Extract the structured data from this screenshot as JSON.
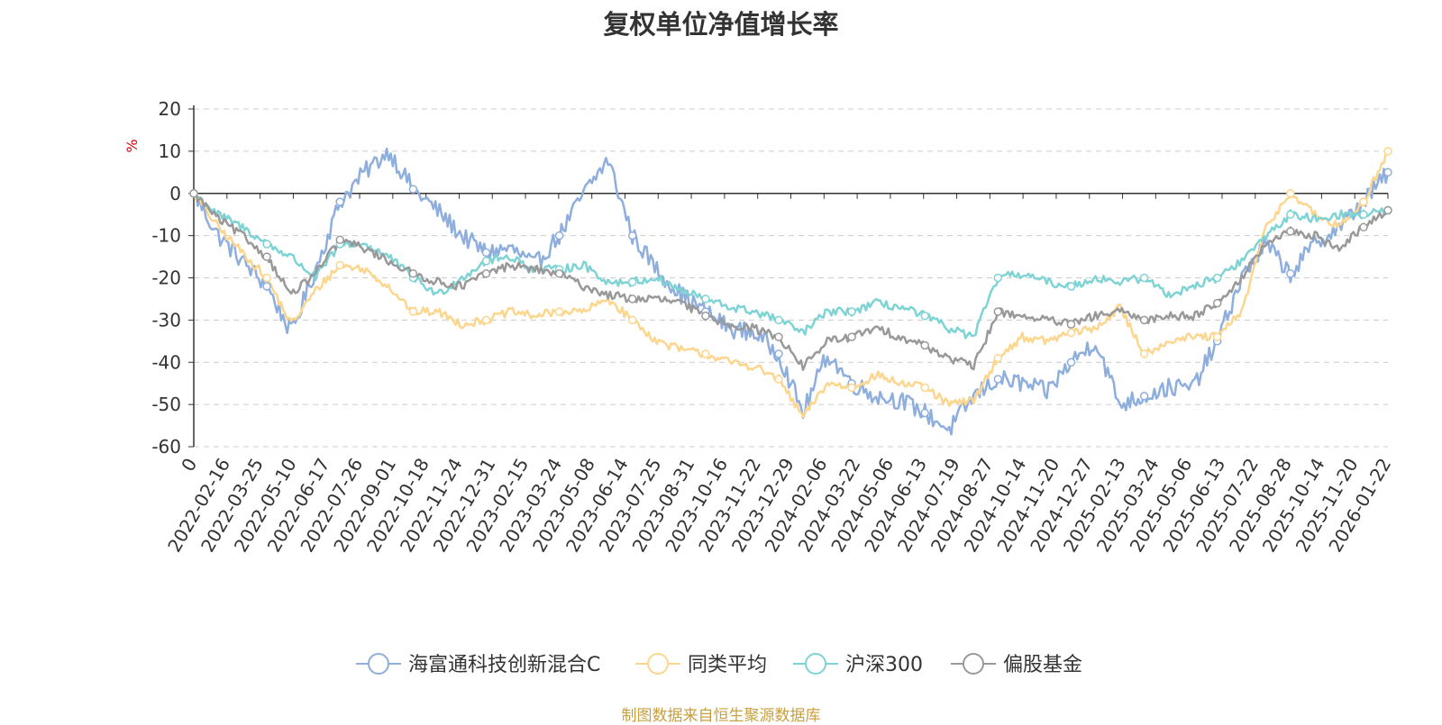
{
  "chart_data": {
    "type": "line",
    "title": "复权单位净值增长率",
    "ylabel": "%",
    "ylim": [
      -60,
      20
    ],
    "yticks": [
      "20",
      "10",
      "0",
      "-10",
      "-20",
      "-30",
      "-40",
      "-50",
      "-60"
    ],
    "x_tick_labels": [
      "0",
      "2022-02-16",
      "2022-03-25",
      "2022-05-10",
      "2022-06-17",
      "2022-07-26",
      "2022-09-01",
      "2022-10-18",
      "2022-11-24",
      "2022-12-31",
      "2023-02-15",
      "2023-03-24",
      "2023-05-08",
      "2023-06-14",
      "2023-07-25",
      "2023-08-31",
      "2023-10-16",
      "2023-11-22",
      "2023-12-29",
      "2024-02-06",
      "2024-03-22",
      "2024-05-06",
      "2024-06-13",
      "2024-07-19",
      "2024-08-27",
      "2024-10-14",
      "2024-11-20",
      "2024-12-27",
      "2025-02-13",
      "2025-03-24",
      "2025-05-06",
      "2025-06-13",
      "2025-07-22",
      "2025-08-28",
      "2025-10-14",
      "2025-11-20",
      "2026-01-22"
    ],
    "x": [
      "0",
      "2022-02",
      "2022-03",
      "2022-04",
      "2022-05",
      "2022-06",
      "2022-07",
      "2022-08",
      "2022-09",
      "2022-10",
      "2022-11",
      "2022-12",
      "2023-01",
      "2023-02",
      "2023-03",
      "2023-04",
      "2023-05",
      "2023-06",
      "2023-07",
      "2023-08",
      "2023-09",
      "2023-10",
      "2023-11",
      "2023-12",
      "2024-01",
      "2024-02",
      "2024-03",
      "2024-04",
      "2024-05",
      "2024-06",
      "2024-07",
      "2024-08",
      "2024-09",
      "2024-10",
      "2024-11",
      "2024-12",
      "2025-01",
      "2025-02",
      "2025-03",
      "2025-04",
      "2025-05",
      "2025-06",
      "2025-07",
      "2025-08",
      "2025-09",
      "2025-10",
      "2025-11",
      "2025-12",
      "2026-01",
      "2026-02"
    ],
    "series": [
      {
        "name": "海富通科技创新混合C",
        "color": "#8eaedd",
        "values": [
          0,
          -10,
          -16,
          -22,
          -33,
          -18,
          -2,
          5,
          10,
          1,
          -4,
          -10,
          -14,
          -13,
          -17,
          -10,
          0,
          8,
          -10,
          -18,
          -24,
          -28,
          -32,
          -33,
          -38,
          -52,
          -38,
          -45,
          -48,
          -49,
          -52,
          -56,
          -48,
          -44,
          -45,
          -47,
          -40,
          -35,
          -50,
          -48,
          -46,
          -46,
          -35,
          -20,
          -12,
          -19,
          -12,
          -8,
          -2,
          5
        ]
      },
      {
        "name": "同类平均",
        "color": "#fcd68d",
        "values": [
          0,
          -8,
          -14,
          -20,
          -31,
          -23,
          -17,
          -18,
          -22,
          -28,
          -28,
          -31,
          -30,
          -28,
          -29,
          -28,
          -28,
          -25,
          -30,
          -35,
          -37,
          -38,
          -40,
          -41,
          -44,
          -53,
          -45,
          -46,
          -43,
          -45,
          -46,
          -50,
          -49,
          -39,
          -34,
          -35,
          -33,
          -32,
          -27,
          -38,
          -35,
          -34,
          -34,
          -28,
          -8,
          0,
          -5,
          -8,
          -2,
          10
        ]
      },
      {
        "name": "沪深300",
        "color": "#7ed3d4",
        "values": [
          0,
          -5,
          -8,
          -12,
          -15,
          -20,
          -12,
          -12,
          -15,
          -20,
          -24,
          -20,
          -16,
          -15,
          -18,
          -18,
          -17,
          -21,
          -21,
          -20,
          -23,
          -25,
          -27,
          -28,
          -30,
          -33,
          -28,
          -28,
          -26,
          -27,
          -29,
          -32,
          -34,
          -20,
          -19,
          -21,
          -22,
          -20,
          -21,
          -20,
          -24,
          -22,
          -20,
          -16,
          -10,
          -5,
          -6,
          -5,
          -5,
          -4
        ]
      },
      {
        "name": "偏股基金",
        "color": "#999999",
        "values": [
          0,
          -6,
          -10,
          -15,
          -24,
          -19,
          -11,
          -13,
          -16,
          -19,
          -21,
          -22,
          -19,
          -17,
          -18,
          -19,
          -22,
          -24,
          -25,
          -25,
          -26,
          -29,
          -31,
          -32,
          -34,
          -41,
          -35,
          -34,
          -32,
          -34,
          -36,
          -39,
          -41,
          -28,
          -29,
          -30,
          -31,
          -29,
          -28,
          -30,
          -29,
          -29,
          -26,
          -20,
          -12,
          -9,
          -10,
          -13,
          -8,
          -4
        ]
      }
    ]
  },
  "source_note": "制图数据来自恒生聚源数据库"
}
